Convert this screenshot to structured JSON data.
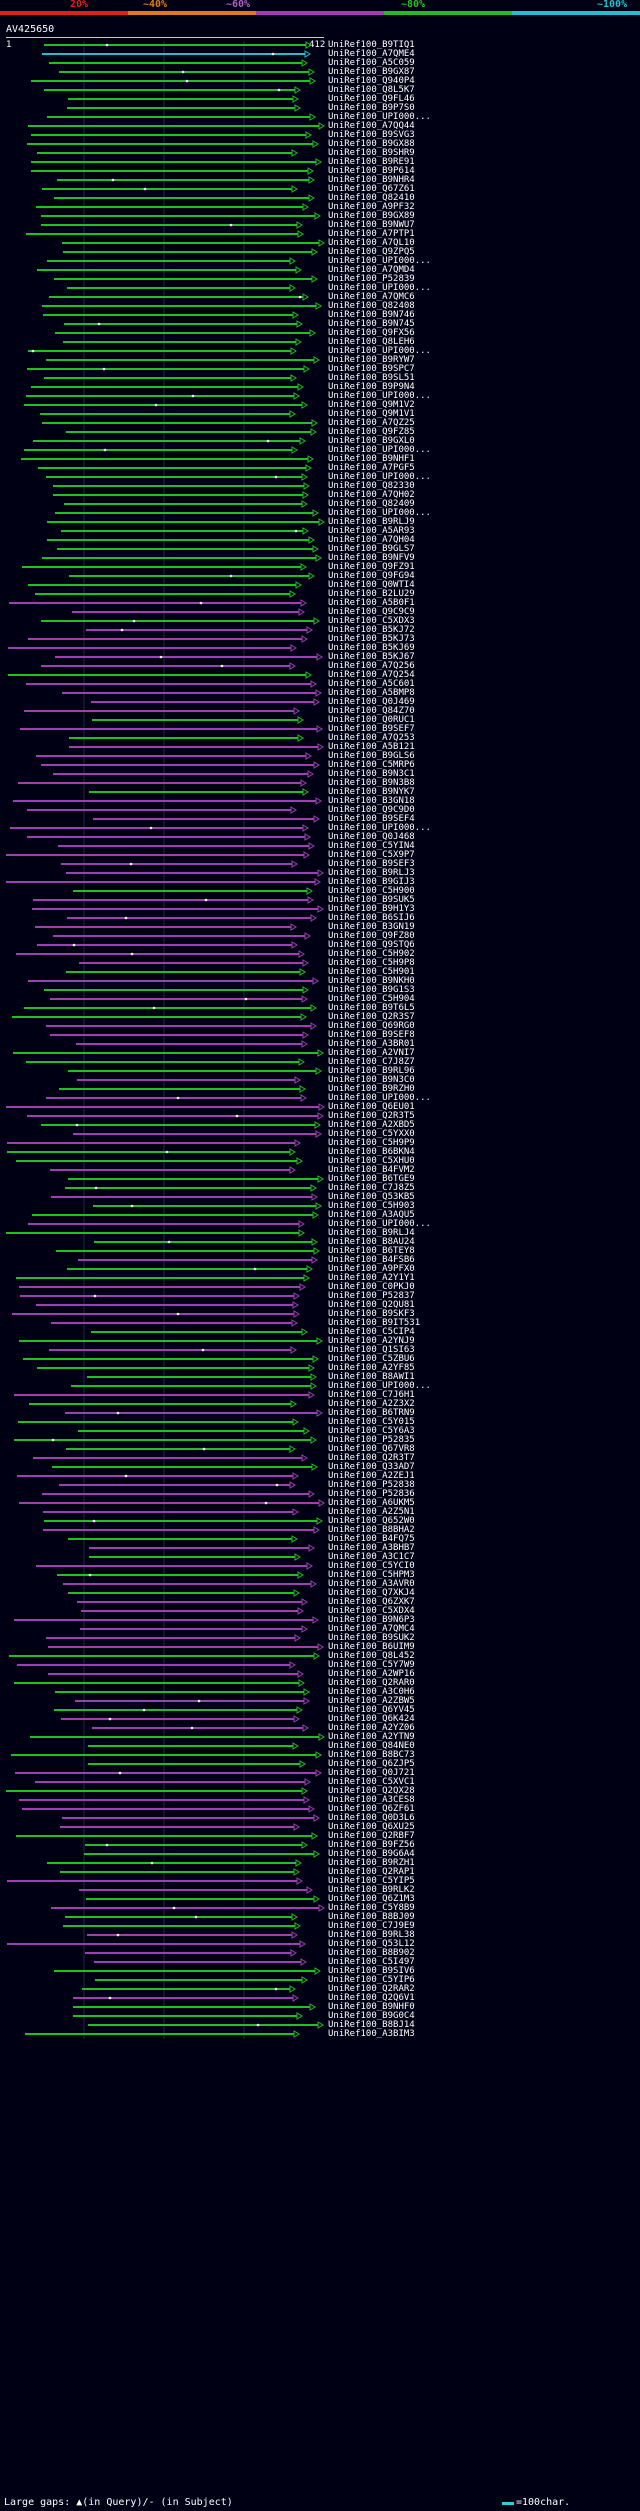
{
  "legend": {
    "labels": [
      "20%",
      "~40%",
      "~60%",
      "~80%",
      "~100%"
    ],
    "colors": [
      "#e02020",
      "#e07b1a",
      "#a040b0",
      "#20c020",
      "#20c0d0"
    ]
  },
  "query": {
    "id": "AV425650",
    "start": "1",
    "end": "412"
  },
  "hits": [
    "UniRef100_B9TIQ1",
    "UniRef100_A7QME4",
    "UniRef100_A5C059",
    "UniRef100_B9GX87",
    "UniRef100_Q940P4",
    "UniRef100_Q8L5K7",
    "UniRef100_Q9FL46",
    "UniRef100_B9P7S0",
    "UniRef100_UPI000...",
    "UniRef100_A7QQ44",
    "UniRef100_B9SVG3",
    "UniRef100_B9GX88",
    "UniRef100_B9SHR9",
    "UniRef100_B9RE91",
    "UniRef100_B9P614",
    "UniRef100_B9NHR4",
    "UniRef100_Q67Z61",
    "UniRef100_Q82410",
    "UniRef100_A9PF32",
    "UniRef100_B9GX89",
    "UniRef100_B9NWU7",
    "UniRef100_A7PTP1",
    "UniRef100_A7QL10",
    "UniRef100_Q9ZPQ5",
    "UniRef100_UPI000...",
    "UniRef100_A7QMD4",
    "UniRef100_P52839",
    "UniRef100_UPI000...",
    "UniRef100_A7QMC6",
    "UniRef100_Q82408",
    "UniRef100_B9N746",
    "UniRef100_B9N745",
    "UniRef100_Q9FX56",
    "UniRef100_Q8LEH6",
    "UniRef100_UPI000...",
    "UniRef100_B9RYW7",
    "UniRef100_B9SPC7",
    "UniRef100_B9SL51",
    "UniRef100_B9P9N4",
    "UniRef100_UPI000...",
    "UniRef100_Q9M1V2",
    "UniRef100_Q9M1V1",
    "UniRef100_A7QZ25",
    "UniRef100_Q9FZ85",
    "UniRef100_B9GXL0",
    "UniRef100_UPI000...",
    "UniRef100_B9NHF1",
    "UniRef100_A7PGF5",
    "UniRef100_UPI000...",
    "UniRef100_Q82330",
    "UniRef100_A7QH02",
    "UniRef100_Q82409",
    "UniRef100_UPI000...",
    "UniRef100_B9RLJ9",
    "UniRef100_A5AR93",
    "UniRef100_A7QH04",
    "UniRef100_B9GLS7",
    "UniRef100_B9NFV9",
    "UniRef100_Q9FZ91",
    "UniRef100_Q9FG94",
    "UniRef100_Q0WTI4",
    "UniRef100_B2LU29",
    "UniRef100_A5B0F1",
    "UniRef100_Q9C9C9",
    "UniRef100_C5XDX3",
    "UniRef100_B5KJ72",
    "UniRef100_B5KJ73",
    "UniRef100_B5KJ69",
    "UniRef100_B5KJ67",
    "UniRef100_A7Q256",
    "UniRef100_A7Q254",
    "UniRef100_A5C601",
    "UniRef100_A5BMP8",
    "UniRef100_Q0J469",
    "UniRef100_Q84Z70",
    "UniRef100_Q0RUC1",
    "UniRef100_B9SEF7",
    "UniRef100_A7Q253",
    "UniRef100_A5B121",
    "UniRef100_B9GLS6",
    "UniRef100_C5MRP6",
    "UniRef100_B9N3C1",
    "UniRef100_B9N3B8",
    "UniRef100_B9NYK7",
    "UniRef100_B3GN18",
    "UniRef100_Q9C9D0",
    "UniRef100_B9SEF4",
    "UniRef100_UPI000...",
    "UniRef100_Q0J468",
    "UniRef100_C5YIN4",
    "UniRef100_C5X9P7",
    "UniRef100_B9SEF3",
    "UniRef100_B9RLJ3",
    "UniRef100_B9GIJ3",
    "UniRef100_C5H900",
    "UniRef100_B9SUK5",
    "UniRef100_B9H1Y3",
    "UniRef100_B6SIJ6",
    "UniRef100_B3GN19",
    "UniRef100_Q9FZ80",
    "UniRef100_Q9STQ6",
    "UniRef100_C5H902",
    "UniRef100_C5H9P8",
    "UniRef100_C5H901",
    "UniRef100_B9NKH0",
    "UniRef100_B9G1S3",
    "UniRef100_C5H904",
    "UniRef100_B9T6L5",
    "UniRef100_Q2R3S7",
    "UniRef100_Q69RG0",
    "UniRef100_B9SEF8",
    "UniRef100_A3BR01",
    "UniRef100_A2VNI7",
    "UniRef100_C7J8Z7",
    "UniRef100_B9RL96",
    "UniRef100_B9N3C0",
    "UniRef100_B9RZH0",
    "UniRef100_UPI000...",
    "UniRef100_Q6EU01",
    "UniRef100_Q2R3T5",
    "UniRef100_A2XBD5",
    "UniRef100_C5YXX0",
    "UniRef100_C5H9P9",
    "UniRef100_B6BKN4",
    "UniRef100_C5XHU0",
    "UniRef100_B4FVM2",
    "UniRef100_B6TGE9",
    "UniRef100_C7J8Z5",
    "UniRef100_Q53KB5",
    "UniRef100_C5H903",
    "UniRef100_A3AQU5",
    "UniRef100_UPI000...",
    "UniRef100_B9RLJ4",
    "UniRef100_B8AU24",
    "UniRef100_B6TEY8",
    "UniRef100_B4FSB6",
    "UniRef100_A9PFX0",
    "UniRef100_A2Y1Y1",
    "UniRef100_C0PKJ0",
    "UniRef100_P52837",
    "UniRef100_Q2QU81",
    "UniRef100_B9SKF3",
    "UniRef100_B9IT531",
    "UniRef100_C5CIP4",
    "UniRef100_A2YNJ9",
    "UniRef100_Q1SI63",
    "UniRef100_C5ZBU6",
    "UniRef100_A2YF85",
    "UniRef100_B8AWI1",
    "UniRef100_UPI000...",
    "UniRef100_C7J6H1",
    "UniRef100_A2Z3X2",
    "UniRef100_B6TRN9",
    "UniRef100_C5Y015",
    "UniRef100_C5Y6A3",
    "UniRef100_P52835",
    "UniRef100_Q67VR8",
    "UniRef100_Q2R3T7",
    "UniRef100_Q33AD7",
    "UniRef100_A2ZEJ1",
    "UniRef100_P52838",
    "UniRef100_P52836",
    "UniRef100_A6UKM5",
    "UniRef100_A2Z5N1",
    "UniRef100_Q652W0",
    "UniRef100_B8BHA2",
    "UniRef100_B4FQ75",
    "UniRef100_A3BHB7",
    "UniRef100_A3C1C7",
    "UniRef100_C5YCI0",
    "UniRef100_C5HPM3",
    "UniRef100_A3AVR0",
    "UniRef100_Q7XKJ4",
    "UniRef100_Q6ZXK7",
    "UniRef100_C5XDX4",
    "UniRef100_B9N6P3",
    "UniRef100_A7QMC4",
    "UniRef100_B9SUK2",
    "UniRef100_B6UIM9",
    "UniRef100_Q8L452",
    "UniRef100_C5Y7W9",
    "UniRef100_A2WP16",
    "UniRef100_Q2RAR0",
    "UniRef100_A3C0H6",
    "UniRef100_A2ZBW5",
    "UniRef100_Q6YV45",
    "UniRef100_Q6K424",
    "UniRef100_A2YZ06",
    "UniRef100_A2YTN9",
    "UniRef100_Q84NE0",
    "UniRef100_B8BC73",
    "UniRef100_Q6ZJP5",
    "UniRef100_Q0J721",
    "UniRef100_C5XVC1",
    "UniRef100_Q2QX28",
    "UniRef100_A3CES8",
    "UniRef100_Q6ZF61",
    "UniRef100_Q0D3L6",
    "UniRef100_Q6XU25",
    "UniRef100_Q2RBF7",
    "UniRef100_B9FZ56",
    "UniRef100_B9G6A4",
    "UniRef100_B9RZH1",
    "UniRef100_Q2RAP1",
    "UniRef100_C5YIP5",
    "UniRef100_B9RLK2",
    "UniRef100_Q6Z1M3",
    "UniRef100_C5Y8B9",
    "UniRef100_B8BJ09",
    "UniRef100_C7J9E9",
    "UniRef100_B9RL38",
    "UniRef100_Q53L12",
    "UniRef100_B8B902",
    "UniRef100_C5I497",
    "UniRef100_B9SIV6",
    "UniRef100_C5YIP6",
    "UniRef100_Q2RAR2",
    "UniRef100_Q2Q6V1",
    "UniRef100_B9NHF0",
    "UniRef100_B9G0C4",
    "UniRef100_B8BJ14",
    "UniRef100_A3BIM3"
  ],
  "footer": {
    "gaps_text": "Large gaps: ▲(in Query)/- (in Subject)",
    "scale_text": "=100char."
  }
}
